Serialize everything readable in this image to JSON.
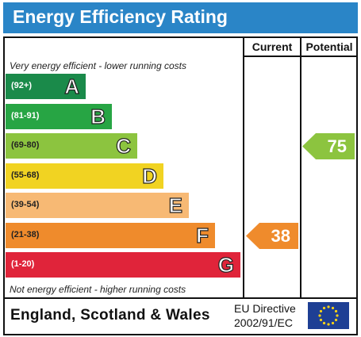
{
  "header": {
    "title": "Energy Efficiency Rating"
  },
  "columns": {
    "current": "Current",
    "potential": "Potential"
  },
  "notes": {
    "top": "Very energy efficient - lower running costs",
    "bottom": "Not energy efficient - higher running costs"
  },
  "bands": [
    {
      "range": "(92+)",
      "letter": "A",
      "color": "#1a8a4a"
    },
    {
      "range": "(81-91)",
      "letter": "B",
      "color": "#27a544"
    },
    {
      "range": "(69-80)",
      "letter": "C",
      "color": "#8cc43f"
    },
    {
      "range": "(55-68)",
      "letter": "D",
      "color": "#f1d322"
    },
    {
      "range": "(39-54)",
      "letter": "E",
      "color": "#f7b974"
    },
    {
      "range": "(21-38)",
      "letter": "F",
      "color": "#ef8b2c"
    },
    {
      "range": "(1-20)",
      "letter": "G",
      "color": "#e0243a"
    }
  ],
  "ratings": {
    "current": {
      "value": "38",
      "band": "F",
      "color": "#ef8b2c"
    },
    "potential": {
      "value": "75",
      "band": "C",
      "color": "#8cc43f"
    }
  },
  "footer": {
    "region": "England, Scotland & Wales",
    "directive_line1": "EU Directive",
    "directive_line2": "2002/91/EC",
    "flag_icon": "eu-flag-icon"
  },
  "chart_data": {
    "type": "bar",
    "title": "Energy Efficiency Rating",
    "categories": [
      "A",
      "B",
      "C",
      "D",
      "E",
      "F",
      "G"
    ],
    "ranges": [
      "(92+)",
      "(81-91)",
      "(69-80)",
      "(55-68)",
      "(39-54)",
      "(21-38)",
      "(1-20)"
    ],
    "current": 38,
    "potential": 75
  }
}
